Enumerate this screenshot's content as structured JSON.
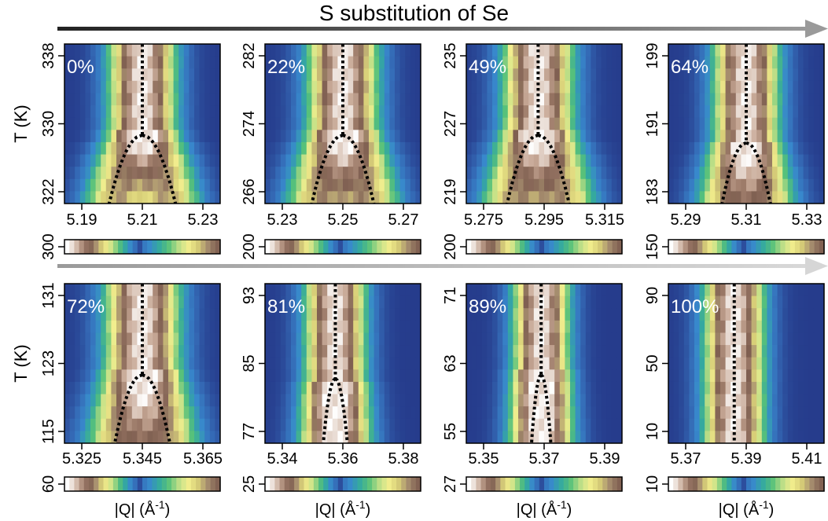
{
  "figure": {
    "title": "S substitution of Se",
    "y_axis_label": "T (K)",
    "x_axis_label_prefix": "|Q| (Å",
    "x_axis_label_sup": "-1",
    "x_axis_label_suffix": ")",
    "colormap": [
      "#ffffff",
      "#e9dcd4",
      "#c9ab99",
      "#9c7a68",
      "#7f5f51",
      "#a89070",
      "#d8cf78",
      "#f2ee8e",
      "#b8dd86",
      "#57c17a",
      "#34a8a0",
      "#3888cc",
      "#3468b4",
      "#263c8c"
    ]
  },
  "chart_data": [
    {
      "type": "heatmap",
      "label": "0%",
      "composition": 0,
      "xticks": [
        "5.19",
        "5.21",
        "5.23"
      ],
      "xlim": [
        5.183,
        5.237
      ],
      "yticks": [
        "322",
        "330",
        "338"
      ],
      "ylim": [
        319.5,
        340.5
      ],
      "colorbar_ticks": [
        "300"
      ],
      "peak_center": 5.21,
      "peak_width": 0.0075,
      "transition_T": 328.5,
      "split_width": 0.01,
      "split_direction": "below",
      "dotted_line_x": 5.21
    },
    {
      "type": "heatmap",
      "label": "22%",
      "composition": 22,
      "xticks": [
        "5.23",
        "5.25",
        "5.27"
      ],
      "xlim": [
        5.224,
        5.276
      ],
      "yticks": [
        "266",
        "274",
        "282"
      ],
      "ylim": [
        263.5,
        284.5
      ],
      "colorbar_ticks": [
        "200"
      ],
      "peak_center": 5.25,
      "peak_width": 0.0075,
      "transition_T": 272.5,
      "split_width": 0.009,
      "split_direction": "below",
      "dotted_line_x": 5.25
    },
    {
      "type": "heatmap",
      "label": "49%",
      "composition": 49,
      "xticks": [
        "5.275",
        "5.295",
        "5.315"
      ],
      "xlim": [
        5.269,
        5.321
      ],
      "yticks": [
        "219",
        "227",
        "235"
      ],
      "ylim": [
        216.5,
        237.5
      ],
      "colorbar_ticks": [
        "200"
      ],
      "peak_center": 5.293,
      "peak_width": 0.0075,
      "transition_T": 225.5,
      "split_width": 0.009,
      "split_direction": "below",
      "dotted_line_x": 5.293
    },
    {
      "type": "heatmap",
      "label": "64%",
      "composition": 64,
      "xticks": [
        "5.29",
        "5.31",
        "5.33"
      ],
      "xlim": [
        5.284,
        5.336
      ],
      "yticks": [
        "183",
        "191",
        "199"
      ],
      "ylim": [
        180.5,
        201.5
      ],
      "colorbar_ticks": [
        "150"
      ],
      "peak_center": 5.31,
      "peak_width": 0.007,
      "transition_T": 188.5,
      "split_width": 0.007,
      "split_direction": "below",
      "dotted_line_x": 5.31
    },
    {
      "type": "heatmap",
      "label": "72%",
      "composition": 72,
      "xticks": [
        "5.325",
        "5.345",
        "5.365"
      ],
      "xlim": [
        5.319,
        5.371
      ],
      "yticks": [
        "115",
        "123",
        "131"
      ],
      "ylim": [
        112.5,
        133.5
      ],
      "colorbar_ticks": [
        "60"
      ],
      "peak_center": 5.345,
      "peak_width": 0.008,
      "transition_T": 121.5,
      "split_width": 0.008,
      "split_direction": "below",
      "dotted_line_x": 5.345
    },
    {
      "type": "heatmap",
      "label": "81%",
      "composition": 81,
      "xticks": [
        "5.34",
        "5.36",
        "5.38"
      ],
      "xlim": [
        5.334,
        5.386
      ],
      "yticks": [
        "77",
        "85",
        "93"
      ],
      "ylim": [
        74.5,
        95.5
      ],
      "colorbar_ticks": [
        "25"
      ],
      "peak_center": 5.3575,
      "peak_width": 0.0065,
      "transition_T": 83.0,
      "split_width": 0.0035,
      "split_direction": "below",
      "dotted_line_x": 5.3575
    },
    {
      "type": "heatmap",
      "label": "89%",
      "composition": 89,
      "xticks": [
        "5.35",
        "5.37",
        "5.39"
      ],
      "xlim": [
        5.344,
        5.396
      ],
      "yticks": [
        "55",
        "63",
        "71"
      ],
      "ylim": [
        52.5,
        73.5
      ],
      "colorbar_ticks": [
        "27"
      ],
      "peak_center": 5.369,
      "peak_width": 0.006,
      "transition_T": 61.5,
      "split_width": 0.0028,
      "split_direction": "below",
      "dotted_line_x": 5.369
    },
    {
      "type": "heatmap",
      "label": "100%",
      "composition": 100,
      "xticks": [
        "5.37",
        "5.39",
        "5.41"
      ],
      "xlim": [
        5.364,
        5.416
      ],
      "yticks": [
        "10",
        "50",
        "90"
      ],
      "ylim": [
        5,
        100
      ],
      "colorbar_ticks": [
        "10"
      ],
      "peak_center": 5.386,
      "peak_width": 0.0065,
      "transition_T": null,
      "split_width": 0,
      "split_direction": "none",
      "dotted_line_x": 5.386
    }
  ]
}
